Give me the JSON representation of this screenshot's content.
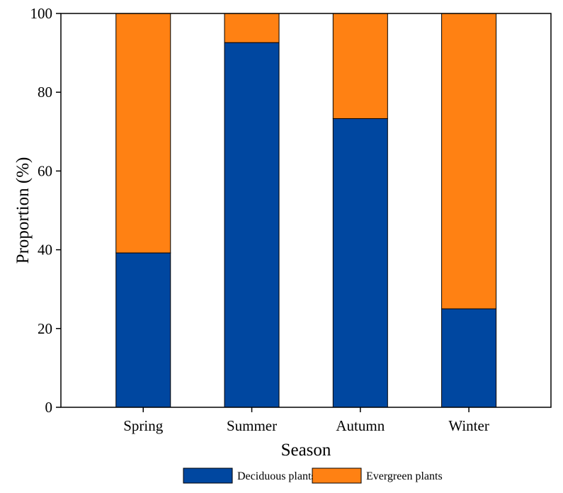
{
  "chart_data": {
    "type": "bar",
    "stacked": true,
    "title": "",
    "xlabel": "Season",
    "ylabel": "Proportion (%)",
    "categories": [
      "Spring",
      "Summer",
      "Autumn",
      "Winter"
    ],
    "ylim": [
      0,
      100
    ],
    "yticks": [
      0,
      20,
      40,
      60,
      80,
      100
    ],
    "yticklabels": [
      "0",
      "20",
      "40",
      "60",
      "80",
      "100"
    ],
    "grid": false,
    "legend_position": "bottom",
    "series": [
      {
        "name": "Deciduous plants",
        "color": "#0047a0",
        "values": [
          39.2,
          92.6,
          73.3,
          25.0
        ]
      },
      {
        "name": "Evergreen plants",
        "color": "#ff8113",
        "values": [
          60.8,
          7.4,
          26.7,
          75.0
        ]
      }
    ]
  }
}
